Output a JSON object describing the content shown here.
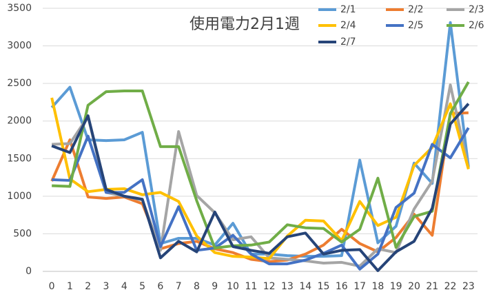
{
  "chart_data": {
    "type": "line",
    "title": "使用電力2月1週",
    "categories": [
      "0",
      "1",
      "2",
      "3",
      "4",
      "5",
      "6",
      "7",
      "8",
      "9",
      "10",
      "11",
      "12",
      "13",
      "14",
      "15",
      "16",
      "17",
      "18",
      "19",
      "20",
      "21",
      "22",
      "23"
    ],
    "series": [
      {
        "name": "2/1",
        "color": "#5B9BD5",
        "values": [
          2180,
          2450,
          1750,
          1740,
          1750,
          1850,
          370,
          440,
          440,
          350,
          640,
          230,
          230,
          210,
          200,
          200,
          210,
          1480,
          380,
          600,
          1440,
          1170,
          3310,
          1390
        ]
      },
      {
        "name": "2/2",
        "color": "#ED7D31",
        "values": [
          1200,
          1750,
          990,
          970,
          990,
          900,
          300,
          370,
          400,
          300,
          250,
          160,
          130,
          150,
          230,
          350,
          560,
          370,
          260,
          450,
          760,
          480,
          2100,
          2110
        ]
      },
      {
        "name": "2/3",
        "color": "#A5A5A5",
        "values": [
          1690,
          1700,
          2060,
          1050,
          1000,
          950,
          280,
          1860,
          1010,
          780,
          420,
          460,
          180,
          160,
          140,
          110,
          120,
          70,
          300,
          250,
          830,
          1200,
          2480,
          1370
        ]
      },
      {
        "name": "2/4",
        "color": "#FFC000",
        "values": [
          2310,
          1230,
          1060,
          1090,
          1100,
          1020,
          1050,
          930,
          470,
          250,
          200,
          190,
          170,
          470,
          680,
          670,
          410,
          930,
          610,
          720,
          1410,
          1650,
          2230,
          1360
        ]
      },
      {
        "name": "2/5",
        "color": "#4472C4",
        "values": [
          1220,
          1210,
          1800,
          1050,
          1050,
          1220,
          330,
          860,
          280,
          310,
          480,
          230,
          100,
          100,
          150,
          240,
          350,
          30,
          230,
          850,
          1040,
          1690,
          1510,
          1910
        ]
      },
      {
        "name": "2/6",
        "color": "#70AD47",
        "values": [
          1140,
          1130,
          2210,
          2390,
          2400,
          2400,
          1660,
          1660,
          940,
          310,
          340,
          350,
          390,
          620,
          580,
          570,
          390,
          560,
          1240,
          320,
          730,
          800,
          2100,
          2520
        ]
      },
      {
        "name": "2/7",
        "color": "#264478",
        "values": [
          1670,
          1580,
          2070,
          1090,
          1000,
          960,
          180,
          400,
          260,
          790,
          330,
          280,
          240,
          460,
          510,
          230,
          280,
          290,
          10,
          260,
          400,
          840,
          1960,
          2230
        ]
      }
    ],
    "ylim": [
      0,
      3500
    ],
    "yticks": [
      0,
      500,
      1000,
      1500,
      2000,
      2500,
      3000,
      3500
    ],
    "grid": true
  }
}
